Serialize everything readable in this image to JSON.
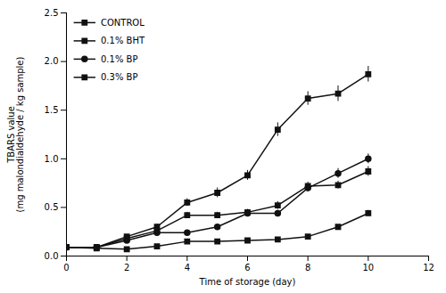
{
  "chart_data": {
    "type": "line",
    "xlabel": "Time of storage (day)",
    "ylabel": "TBARS value\n(mg malondialdehyde / kg sample)",
    "x": [
      0,
      1,
      2,
      3,
      4,
      5,
      6,
      7,
      8,
      9,
      10
    ],
    "series": [
      {
        "name": "CONTROL",
        "color": "#111111",
        "marker": "square",
        "values": [
          0.09,
          0.09,
          0.2,
          0.3,
          0.55,
          0.65,
          0.83,
          1.3,
          1.62,
          1.67,
          1.87
        ],
        "errors": [
          0.01,
          0.01,
          0.02,
          0.03,
          0.04,
          0.05,
          0.05,
          0.07,
          0.07,
          0.08,
          0.08
        ]
      },
      {
        "name": "0.1% BHT",
        "color": "#111111",
        "marker": "square",
        "values": [
          0.09,
          0.09,
          0.18,
          0.26,
          0.42,
          0.42,
          0.45,
          0.52,
          0.72,
          0.73,
          0.87
        ],
        "errors": [
          0.01,
          0.01,
          0.02,
          0.02,
          0.03,
          0.03,
          0.03,
          0.04,
          0.04,
          0.04,
          0.05
        ]
      },
      {
        "name": "0.1% BP",
        "color": "#111111",
        "marker": "circle",
        "values": [
          0.09,
          0.09,
          0.16,
          0.24,
          0.24,
          0.3,
          0.44,
          0.44,
          0.7,
          0.85,
          1.0
        ],
        "errors": [
          0.01,
          0.01,
          0.02,
          0.02,
          0.02,
          0.02,
          0.03,
          0.03,
          0.04,
          0.05,
          0.05
        ]
      },
      {
        "name": "0.3% BP",
        "color": "#111111",
        "marker": "square",
        "values": [
          0.09,
          0.08,
          0.07,
          0.1,
          0.15,
          0.15,
          0.16,
          0.17,
          0.2,
          0.3,
          0.44
        ],
        "errors": [
          0.01,
          0.01,
          0.01,
          0.01,
          0.01,
          0.01,
          0.01,
          0.01,
          0.02,
          0.02,
          0.03
        ]
      }
    ],
    "xlim": [
      0,
      12
    ],
    "xticks": [
      0,
      2,
      4,
      6,
      8,
      10,
      12
    ],
    "ylim": [
      0.0,
      2.5
    ],
    "yticks": [
      {
        "value": 0,
        "label": "0.0"
      },
      0.5,
      {
        "value": 1,
        "label": "1.0"
      },
      1.5,
      {
        "value": 2,
        "label": "2.0"
      },
      2.5
    ],
    "legend": "upper left",
    "grid": false
  }
}
